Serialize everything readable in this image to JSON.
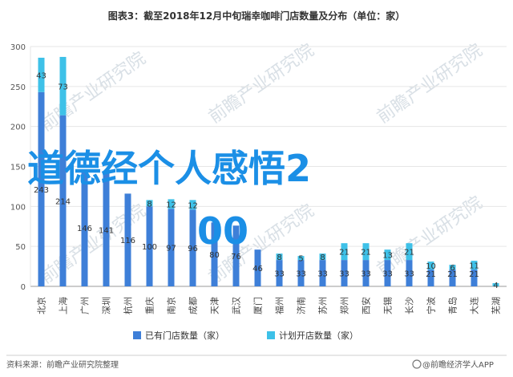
{
  "chart_data": {
    "type": "bar",
    "title": "图表3：截至2018年12月中旬瑞幸咖啡门店数量及分布（单位：家）",
    "ylim": [
      0,
      300
    ],
    "yticks": [
      0,
      50,
      100,
      150,
      200,
      250,
      300
    ],
    "grid": true,
    "stacked": true,
    "legend_position": "bottom",
    "categories": [
      "北京",
      "上海",
      "广州",
      "深圳",
      "杭州",
      "重庆",
      "南京",
      "成都",
      "天津",
      "武汉",
      "厦门",
      "福州",
      "济南",
      "苏州",
      "郑州",
      "西安",
      "无锡",
      "长沙",
      "宁波",
      "青岛",
      "大连",
      "芜湖"
    ],
    "series": [
      {
        "name": "已有门店数量（家）",
        "color": "#3e7fd8",
        "values": [
          243,
          214,
          146,
          141,
          116,
          100,
          97,
          96,
          80,
          76,
          46,
          33,
          33,
          33,
          33,
          33,
          33,
          33,
          21,
          21,
          21,
          0
        ]
      },
      {
        "name": "计划开店数量（家）",
        "color": "#3ec1e8",
        "values": [
          43,
          73,
          null,
          null,
          null,
          8,
          12,
          12,
          null,
          null,
          null,
          8,
          5,
          8,
          21,
          21,
          13,
          21,
          10,
          6,
          11,
          4
        ]
      }
    ]
  },
  "overlay_text": "道德经个人感悟2",
  "overlay_text2": "00",
  "watermark": "前瞻产业研究院",
  "footer": {
    "source": "资料来源：前瞻产业研究院整理",
    "brand": "@前瞻经济学人APP"
  },
  "colors": {
    "grid": "#e6e6e6",
    "axis": "#999999",
    "overlay": "#1b8fe6"
  }
}
